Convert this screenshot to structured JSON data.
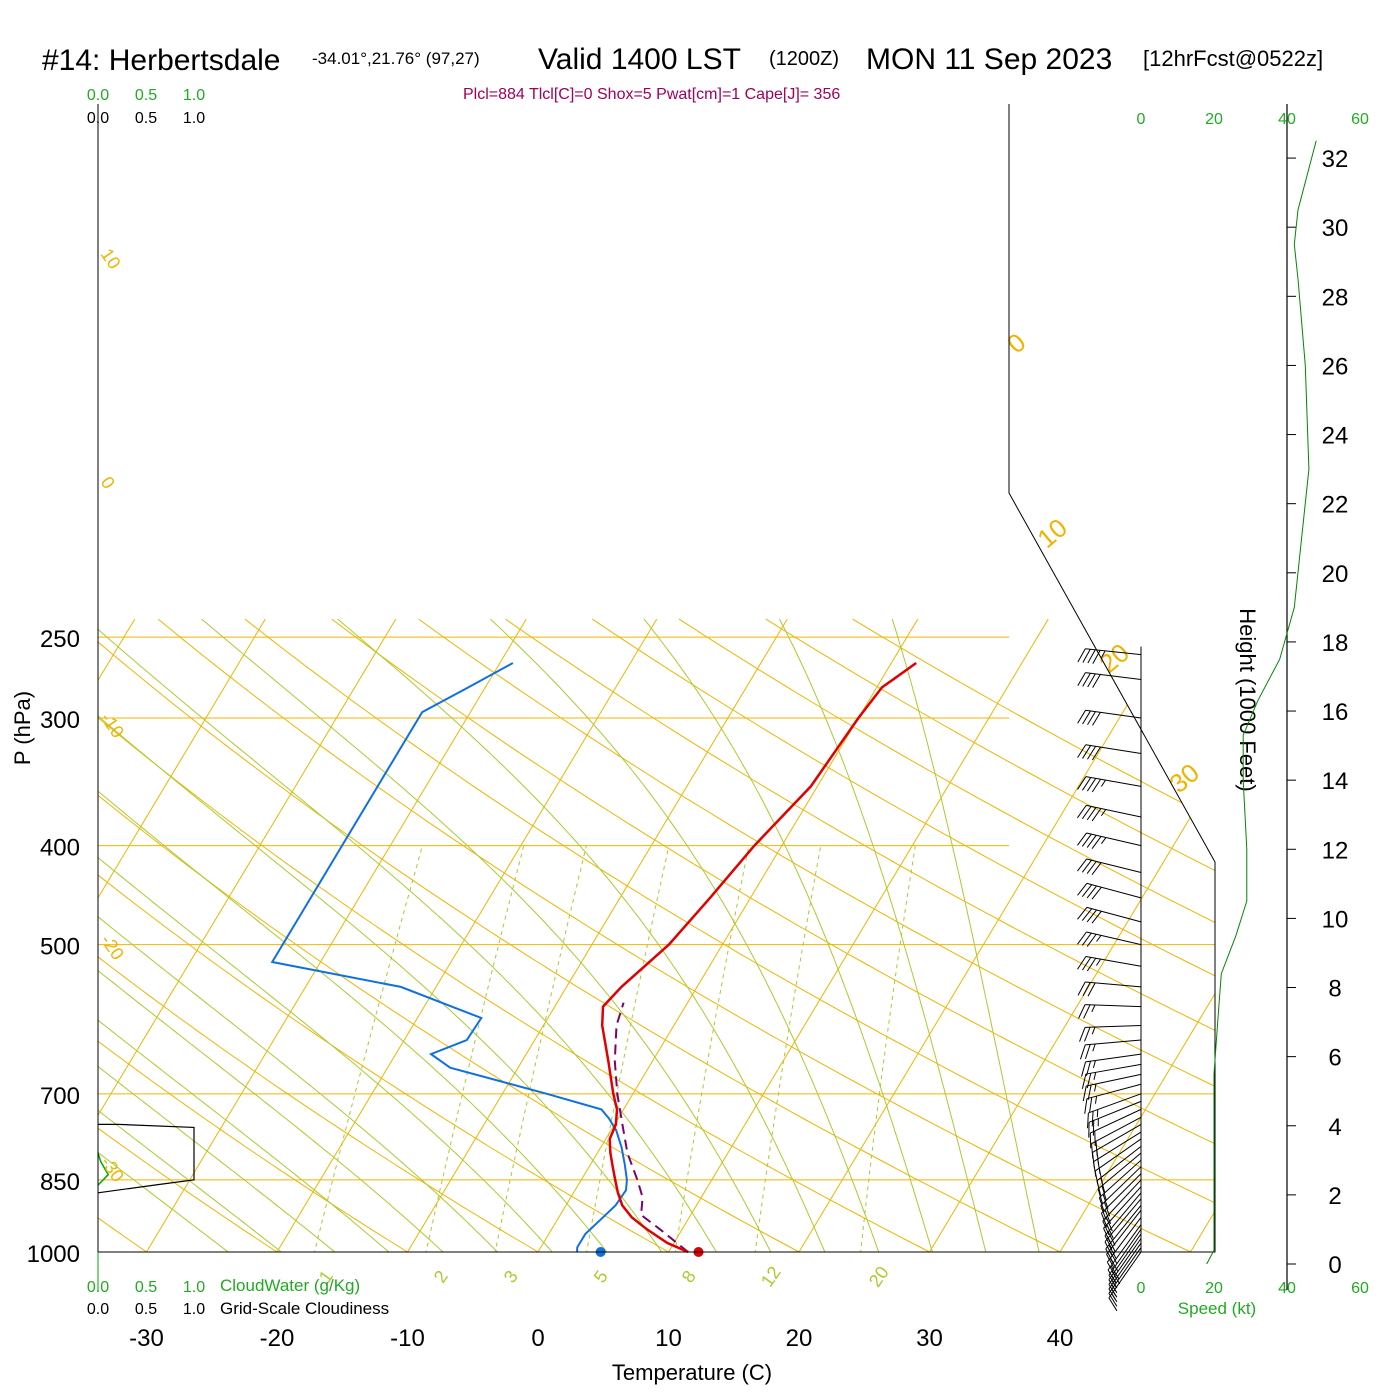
{
  "header": {
    "station": "#14: Herbertsdale",
    "coords": "-34.01°,21.76° (97,27)",
    "valid": "Valid 1400 LST",
    "utc": "(1200Z)",
    "date": "MON 11 Sep 2023",
    "forecast": "[12hrFcst@0522z]"
  },
  "indices": "Plcl=884 Tlcl[C]=0 Shox=5 Pwat[cm]=1 Cape[J]= 356",
  "colors": {
    "temperature": "#e00000",
    "dewpoint": "#1070e0",
    "parcel": "#800070",
    "isotherm": "#f0b400",
    "dry_adiabat": "#f0b400",
    "moist_adiabat": "#a8cc30",
    "mixing_ratio": "#a8cc30",
    "cloud_water": "#00aa00",
    "height_curve": "#008800",
    "indices_text": "#a0005a",
    "green_label": "#22aa22"
  },
  "chart_data": {
    "type": "skew-t log-p sounding",
    "ylabel": "P (hPa)",
    "xlabel": "Temperature (C)",
    "right_label": "Height (1000 Feet)",
    "speed_label": "Speed (kt)",
    "pressure_ticks": [
      250,
      300,
      400,
      500,
      700,
      850,
      1000
    ],
    "temperature_ticks": [
      -30,
      -20,
      -10,
      0,
      10,
      20,
      30,
      40
    ],
    "height_ticks": [
      0,
      2,
      4,
      6,
      8,
      10,
      12,
      14,
      16,
      18,
      20,
      22,
      24,
      26,
      28,
      30,
      32
    ],
    "cloud_axis_top": {
      "green": [
        "0.0",
        "0.5",
        "1.0"
      ],
      "black": [
        "0.0",
        "0.5",
        "1.0"
      ]
    },
    "cloud_axis_bottom": {
      "green": [
        "0.0",
        "0.5",
        "1.0"
      ],
      "black": [
        "0.0",
        "0.5",
        "1.0"
      ],
      "green_label": "CloudWater (g/Kg)",
      "black_label": "Grid-Scale Cloudiness"
    },
    "speed_axis_ticks": [
      "0",
      "20",
      "40",
      "60"
    ],
    "isotherm_labels": [
      "0",
      "10",
      "20",
      "30"
    ],
    "dry_adiabat_labels": [
      "10",
      "0",
      "-10",
      "-20",
      "-30"
    ],
    "mixing_ratio_labels": [
      "1",
      "2",
      "3",
      "5",
      "8",
      "12",
      "20"
    ],
    "temperature_profile": [
      {
        "p": 1000,
        "t": 11.5
      },
      {
        "p": 980,
        "t": 9.5
      },
      {
        "p": 950,
        "t": 7.3
      },
      {
        "p": 925,
        "t": 5.6
      },
      {
        "p": 900,
        "t": 4.3
      },
      {
        "p": 875,
        "t": 3.4
      },
      {
        "p": 850,
        "t": 2.6
      },
      {
        "p": 825,
        "t": 1.8
      },
      {
        "p": 800,
        "t": 1.0
      },
      {
        "p": 775,
        "t": 0.3
      },
      {
        "p": 750,
        "t": 0.1
      },
      {
        "p": 725,
        "t": -0.5
      },
      {
        "p": 700,
        "t": -1.5
      },
      {
        "p": 650,
        "t": -3.4
      },
      {
        "p": 600,
        "t": -5.5
      },
      {
        "p": 575,
        "t": -6.3
      },
      {
        "p": 550,
        "t": -5.8
      },
      {
        "p": 500,
        "t": -4.1
      },
      {
        "p": 450,
        "t": -3.1
      },
      {
        "p": 400,
        "t": -2.1
      },
      {
        "p": 350,
        "t": -0.5
      },
      {
        "p": 300,
        "t": 0.0
      },
      {
        "p": 280,
        "t": 0.4
      },
      {
        "p": 265,
        "t": 1.9
      }
    ],
    "dewpoint_profile": [
      {
        "p": 1000,
        "t": 3.0
      },
      {
        "p": 990,
        "t": 2.8
      },
      {
        "p": 960,
        "t": 2.8
      },
      {
        "p": 930,
        "t": 3.3
      },
      {
        "p": 900,
        "t": 3.8
      },
      {
        "p": 870,
        "t": 3.9
      },
      {
        "p": 850,
        "t": 3.5
      },
      {
        "p": 820,
        "t": 2.6
      },
      {
        "p": 790,
        "t": 1.6
      },
      {
        "p": 760,
        "t": 0.4
      },
      {
        "p": 740,
        "t": -0.7
      },
      {
        "p": 725,
        "t": -1.7
      },
      {
        "p": 700,
        "t": -6.6
      },
      {
        "p": 660,
        "t": -15.2
      },
      {
        "p": 640,
        "t": -17.3
      },
      {
        "p": 620,
        "t": -15.2
      },
      {
        "p": 590,
        "t": -15.1
      },
      {
        "p": 550,
        "t": -22.7
      },
      {
        "p": 520,
        "t": -33.7
      },
      {
        "p": 296,
        "t": -33.7
      },
      {
        "p": 280,
        "t": -31.3
      },
      {
        "p": 265,
        "t": -29.0
      }
    ],
    "parcel_profile": [
      {
        "p": 1000,
        "t": 11.5
      },
      {
        "p": 950,
        "t": 8.3
      },
      {
        "p": 920,
        "t": 6.2
      },
      {
        "p": 884,
        "t": 5.5
      },
      {
        "p": 850,
        "t": 4.3
      },
      {
        "p": 800,
        "t": 2.3
      },
      {
        "p": 750,
        "t": 0.6
      },
      {
        "p": 700,
        "t": -1.2
      },
      {
        "p": 650,
        "t": -2.9
      },
      {
        "p": 600,
        "t": -4.4
      },
      {
        "p": 570,
        "t": -4.9
      }
    ],
    "surface_temperature_marker": {
      "p": 1000,
      "t": 12.3
    },
    "surface_dewpoint_marker": {
      "p": 1000,
      "t": 4.8
    },
    "cloudiness": [
      {
        "p": 750,
        "v": 0.0
      },
      {
        "p": 750,
        "v": 0.16
      },
      {
        "p": 755,
        "v": 0.75
      },
      {
        "p": 850,
        "v": 0.75
      },
      {
        "p": 860,
        "v": 0.44
      },
      {
        "p": 875,
        "v": 0.0
      }
    ],
    "cloud_water": [
      {
        "p": 800,
        "v": 0.0
      },
      {
        "p": 815,
        "v": 0.02
      },
      {
        "p": 840,
        "v": 0.08
      },
      {
        "p": 855,
        "v": 0.02
      },
      {
        "p": 860,
        "v": 0.0
      }
    ],
    "height_speed_profile": [
      {
        "h": 0.0,
        "s": 18
      },
      {
        "h": 0.4,
        "s": 20
      },
      {
        "h": 2.0,
        "s": 20
      },
      {
        "h": 4.0,
        "s": 20
      },
      {
        "h": 5.5,
        "s": 20
      },
      {
        "h": 7.0,
        "s": 21
      },
      {
        "h": 8.4,
        "s": 22
      },
      {
        "h": 9.5,
        "s": 26
      },
      {
        "h": 10.5,
        "s": 29
      },
      {
        "h": 12.0,
        "s": 29
      },
      {
        "h": 14.0,
        "s": 28
      },
      {
        "h": 15.3,
        "s": 28
      },
      {
        "h": 16.3,
        "s": 32
      },
      {
        "h": 17.5,
        "s": 38
      },
      {
        "h": 19.0,
        "s": 42
      },
      {
        "h": 21.0,
        "s": 44
      },
      {
        "h": 23.0,
        "s": 46
      },
      {
        "h": 26.0,
        "s": 45
      },
      {
        "h": 28.5,
        "s": 43
      },
      {
        "h": 29.5,
        "s": 42
      },
      {
        "h": 30.5,
        "s": 43
      },
      {
        "h": 32.5,
        "s": 48
      }
    ],
    "wind_barbs": [
      {
        "p": 1000,
        "dir": 215,
        "spd": 18
      },
      {
        "p": 990,
        "dir": 215,
        "spd": 19
      },
      {
        "p": 980,
        "dir": 215,
        "spd": 19
      },
      {
        "p": 970,
        "dir": 215,
        "spd": 19
      },
      {
        "p": 960,
        "dir": 215,
        "spd": 19
      },
      {
        "p": 950,
        "dir": 215,
        "spd": 20
      },
      {
        "p": 940,
        "dir": 216,
        "spd": 20
      },
      {
        "p": 925,
        "dir": 217,
        "spd": 20
      },
      {
        "p": 910,
        "dir": 218,
        "spd": 20
      },
      {
        "p": 900,
        "dir": 219,
        "spd": 20
      },
      {
        "p": 887,
        "dir": 220,
        "spd": 20
      },
      {
        "p": 875,
        "dir": 220,
        "spd": 20
      },
      {
        "p": 863,
        "dir": 222,
        "spd": 20
      },
      {
        "p": 850,
        "dir": 223,
        "spd": 20
      },
      {
        "p": 838,
        "dir": 225,
        "spd": 20
      },
      {
        "p": 825,
        "dir": 226,
        "spd": 20
      },
      {
        "p": 813,
        "dir": 228,
        "spd": 20
      },
      {
        "p": 800,
        "dir": 230,
        "spd": 21
      },
      {
        "p": 788,
        "dir": 232,
        "spd": 21
      },
      {
        "p": 775,
        "dir": 235,
        "spd": 21
      },
      {
        "p": 763,
        "dir": 238,
        "spd": 22
      },
      {
        "p": 750,
        "dir": 240,
        "spd": 22
      },
      {
        "p": 738,
        "dir": 242,
        "spd": 22
      },
      {
        "p": 725,
        "dir": 245,
        "spd": 24
      },
      {
        "p": 712,
        "dir": 248,
        "spd": 25
      },
      {
        "p": 700,
        "dir": 250,
        "spd": 27
      },
      {
        "p": 685,
        "dir": 255,
        "spd": 28
      },
      {
        "p": 670,
        "dir": 258,
        "spd": 29
      },
      {
        "p": 655,
        "dir": 260,
        "spd": 29
      },
      {
        "p": 640,
        "dir": 262,
        "spd": 29
      },
      {
        "p": 620,
        "dir": 265,
        "spd": 28
      },
      {
        "p": 600,
        "dir": 268,
        "spd": 28
      },
      {
        "p": 575,
        "dir": 272,
        "spd": 29
      },
      {
        "p": 550,
        "dir": 275,
        "spd": 32
      },
      {
        "p": 525,
        "dir": 280,
        "spd": 35
      },
      {
        "p": 500,
        "dir": 283,
        "spd": 38
      },
      {
        "p": 475,
        "dir": 285,
        "spd": 42
      },
      {
        "p": 450,
        "dir": 285,
        "spd": 43
      },
      {
        "p": 425,
        "dir": 284,
        "spd": 44
      },
      {
        "p": 400,
        "dir": 283,
        "spd": 45
      },
      {
        "p": 375,
        "dir": 282,
        "spd": 46
      },
      {
        "p": 350,
        "dir": 280,
        "spd": 45
      },
      {
        "p": 325,
        "dir": 279,
        "spd": 44
      },
      {
        "p": 300,
        "dir": 278,
        "spd": 43
      },
      {
        "p": 275,
        "dir": 277,
        "spd": 44
      },
      {
        "p": 260,
        "dir": 276,
        "spd": 49
      }
    ]
  }
}
